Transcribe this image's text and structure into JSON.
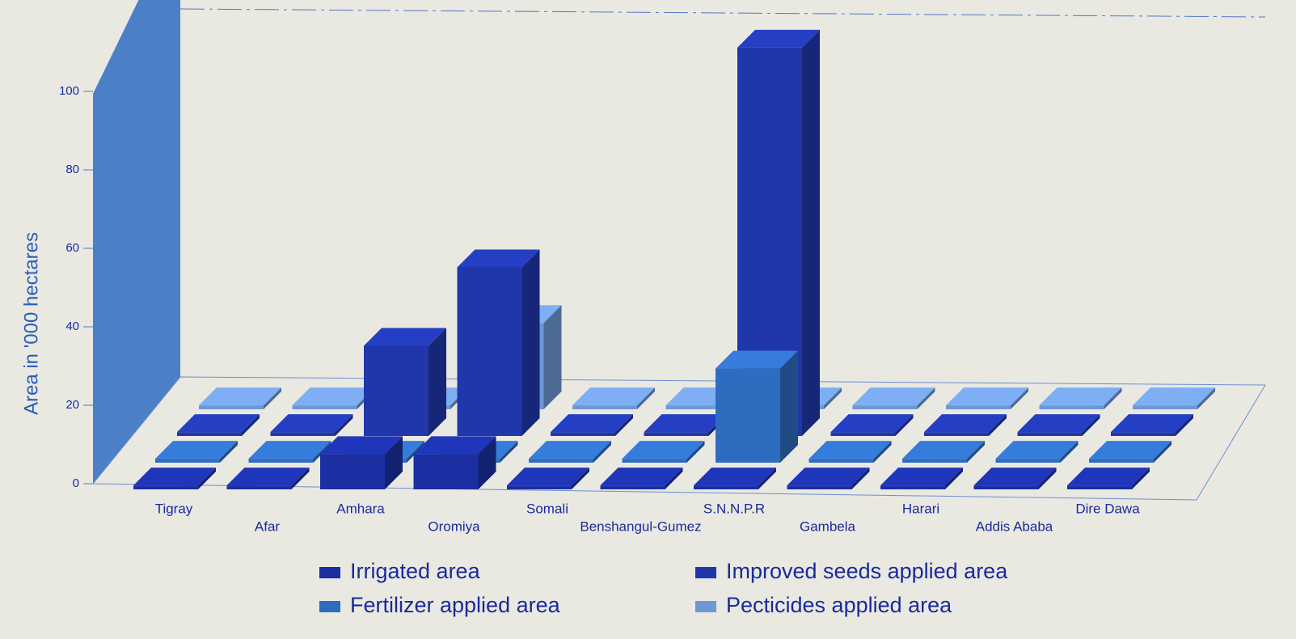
{
  "chart_data": {
    "type": "bar3d",
    "y_label": "Area in '000 hectares",
    "categories": [
      "Tigray",
      "Afar",
      "Amhara",
      "Oromiya",
      "Somali",
      "Benshangul-Gumez",
      "S.N.N.P.R",
      "Gambela",
      "Harari",
      "Addis Ababa",
      "Dire Dawa"
    ],
    "series": [
      {
        "name": "Irrigated area",
        "color": "#1b2fa2",
        "values": [
          1,
          1,
          9,
          9,
          1,
          1,
          1,
          1,
          1,
          1,
          1
        ]
      },
      {
        "name": "Fertilizer applied area",
        "color": "#2e6cc0",
        "values": [
          1,
          1,
          1,
          1,
          1,
          1,
          24,
          1,
          1,
          1,
          1
        ]
      },
      {
        "name": "Improved seeds applied area",
        "color": "#1f37aa",
        "values": [
          1,
          1,
          23,
          43,
          1,
          1,
          99,
          1,
          1,
          1,
          1
        ]
      },
      {
        "name": "Pecticides applied area",
        "color": "#6e98d4",
        "values": [
          1,
          1,
          1,
          22,
          1,
          1,
          1,
          1,
          1,
          1,
          1
        ]
      }
    ],
    "ylim": [
      0,
      120
    ],
    "yticks": [
      0,
      20,
      40,
      60,
      80,
      100
    ]
  }
}
